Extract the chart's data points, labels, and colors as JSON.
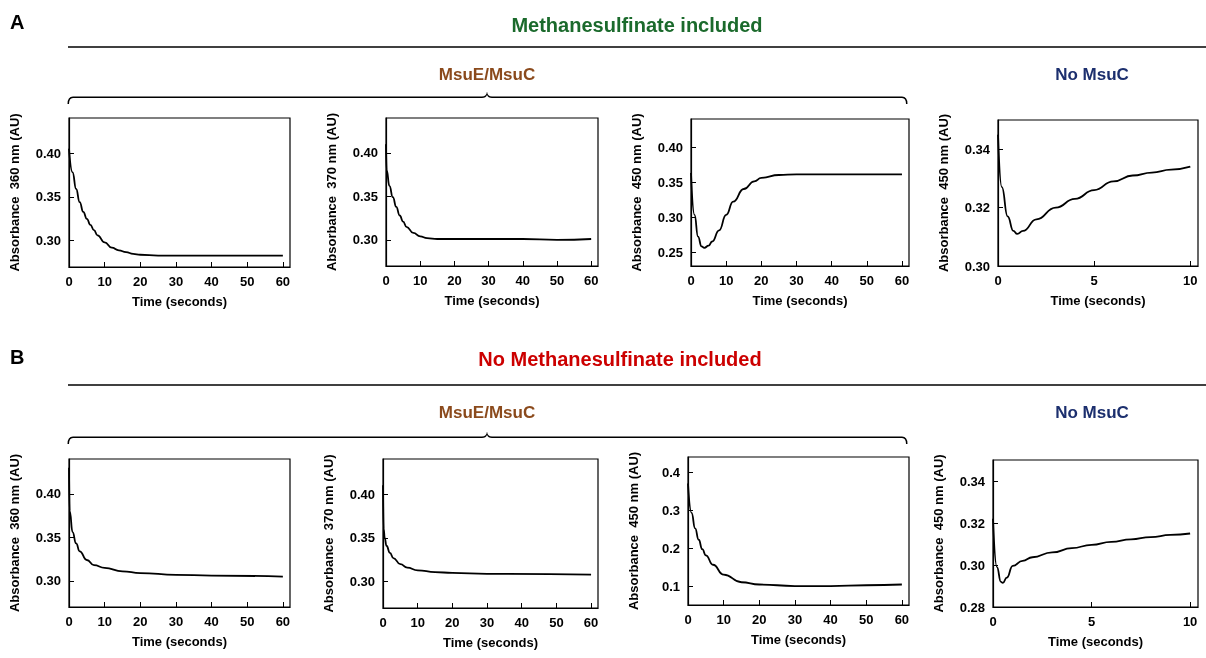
{
  "chart_data": [
    {
      "type": "line",
      "annotations": [
        "A",
        "Methanesulfinate included",
        "MsuE/MsuC"
      ],
      "xlabel": "Time (seconds)",
      "ylabel": "Absorbance  360 nm (AU)",
      "marker": "none",
      "line_style": "solid",
      "color": "#000000",
      "xlim": [
        0,
        62
      ],
      "xticks": [
        0,
        10,
        20,
        30,
        40,
        50,
        60
      ],
      "ylim": [
        0.27,
        0.44
      ],
      "yticks": [
        {
          "value": 0.3,
          "label": "0.30"
        },
        {
          "value": 0.35,
          "label": "0.35"
        },
        {
          "value": 0.4,
          "label": "0.40"
        }
      ],
      "x": [
        0,
        1,
        2,
        3,
        4,
        5,
        6,
        7,
        8,
        10,
        12,
        14,
        16,
        18,
        20,
        25,
        30,
        40,
        50,
        60
      ],
      "values": [
        0.405,
        0.378,
        0.359,
        0.344,
        0.333,
        0.325,
        0.318,
        0.312,
        0.306,
        0.298,
        0.292,
        0.289,
        0.287,
        0.285,
        0.284,
        0.283,
        0.283,
        0.283,
        0.283,
        0.283
      ]
    },
    {
      "type": "line",
      "xlabel": "Time (seconds)",
      "ylabel": "Absorbance  370 nm (AU)",
      "marker": "none",
      "line_style": "solid",
      "color": "#000000",
      "xlim": [
        0,
        62
      ],
      "xticks": [
        0,
        10,
        20,
        30,
        40,
        50,
        60
      ],
      "ylim": [
        0.27,
        0.44
      ],
      "yticks": [
        {
          "value": 0.3,
          "label": "0.30"
        },
        {
          "value": 0.35,
          "label": "0.35"
        },
        {
          "value": 0.4,
          "label": "0.40"
        }
      ],
      "x": [
        0,
        0.2,
        1,
        2,
        3,
        4,
        5,
        6,
        8,
        10,
        12,
        15,
        20,
        30,
        40,
        50,
        60
      ],
      "values": [
        0.41,
        0.38,
        0.362,
        0.349,
        0.338,
        0.328,
        0.321,
        0.315,
        0.308,
        0.304,
        0.302,
        0.301,
        0.301,
        0.301,
        0.301,
        0.3,
        0.301
      ]
    },
    {
      "type": "line",
      "xlabel": "Time (seconds)",
      "ylabel": "Absorbance  450 nm (AU)",
      "marker": "none",
      "line_style": "solid",
      "color": "#000000",
      "xlim": [
        0,
        62
      ],
      "xticks": [
        0,
        10,
        20,
        30,
        40,
        50,
        60
      ],
      "ylim": [
        0.23,
        0.44
      ],
      "yticks": [
        {
          "value": 0.25,
          "label": "0.25"
        },
        {
          "value": 0.3,
          "label": "0.30"
        },
        {
          "value": 0.35,
          "label": "0.35"
        },
        {
          "value": 0.4,
          "label": "0.40"
        }
      ],
      "x": [
        0,
        1,
        2,
        3,
        3.8,
        5,
        6,
        8,
        10,
        12,
        15,
        18,
        20,
        25,
        30,
        40,
        50,
        60
      ],
      "values": [
        0.363,
        0.303,
        0.272,
        0.258,
        0.256,
        0.259,
        0.265,
        0.281,
        0.303,
        0.322,
        0.34,
        0.351,
        0.356,
        0.36,
        0.361,
        0.361,
        0.361,
        0.361
      ]
    },
    {
      "type": "line",
      "annotations": [
        "No MsuC"
      ],
      "xlabel": "Time (seconds)",
      "ylabel": "Absorbance  450 nm (AU)",
      "marker": "none",
      "line_style": "solid",
      "color": "#000000",
      "xlim": [
        0,
        10.4
      ],
      "xticks": [
        0,
        5,
        10
      ],
      "ylim": [
        0.3,
        0.35
      ],
      "yticks": [
        {
          "value": 0.3,
          "label": "0.30"
        },
        {
          "value": 0.32,
          "label": "0.32"
        },
        {
          "value": 0.34,
          "label": "0.34"
        }
      ],
      "x": [
        0,
        0.2,
        0.5,
        0.8,
        1,
        1.3,
        2,
        3,
        4,
        5,
        6,
        7,
        8,
        9,
        10
      ],
      "values": [
        0.345,
        0.327,
        0.317,
        0.312,
        0.311,
        0.312,
        0.316,
        0.32,
        0.323,
        0.326,
        0.329,
        0.331,
        0.332,
        0.333,
        0.334
      ]
    },
    {
      "type": "line",
      "annotations": [
        "B",
        "No Methanesulfinate included",
        "MsuE/MsuC"
      ],
      "xlabel": "Time (seconds)",
      "ylabel": "Absorbance  360 nm (AU)",
      "marker": "none",
      "line_style": "solid",
      "color": "#000000",
      "xlim": [
        0,
        62
      ],
      "xticks": [
        0,
        10,
        20,
        30,
        40,
        50,
        60
      ],
      "ylim": [
        0.27,
        0.44
      ],
      "yticks": [
        {
          "value": 0.3,
          "label": "0.30"
        },
        {
          "value": 0.35,
          "label": "0.35"
        },
        {
          "value": 0.4,
          "label": "0.40"
        }
      ],
      "x": [
        0,
        0.2,
        1,
        2,
        3,
        5,
        7,
        10,
        15,
        20,
        30,
        40,
        60
      ],
      "values": [
        0.43,
        0.38,
        0.356,
        0.343,
        0.334,
        0.324,
        0.318,
        0.315,
        0.311,
        0.309,
        0.307,
        0.306,
        0.305
      ]
    },
    {
      "type": "line",
      "xlabel": "Time (seconds)",
      "ylabel": "Absorbance  370 nm (AU)",
      "marker": "none",
      "line_style": "solid",
      "color": "#000000",
      "xlim": [
        0,
        62
      ],
      "xticks": [
        0,
        10,
        20,
        30,
        40,
        50,
        60
      ],
      "ylim": [
        0.27,
        0.44
      ],
      "yticks": [
        {
          "value": 0.3,
          "label": "0.30"
        },
        {
          "value": 0.35,
          "label": "0.35"
        },
        {
          "value": 0.4,
          "label": "0.40"
        }
      ],
      "x": [
        0,
        0.2,
        0.5,
        1,
        2,
        3,
        5,
        7,
        10,
        15,
        20,
        30,
        60
      ],
      "values": [
        0.41,
        0.36,
        0.35,
        0.341,
        0.333,
        0.327,
        0.32,
        0.316,
        0.313,
        0.311,
        0.31,
        0.309,
        0.308
      ]
    },
    {
      "type": "line",
      "xlabel": "Time (seconds)",
      "ylabel": "Absorbance  450 nm (AU)",
      "marker": "none",
      "line_style": "solid",
      "color": "#000000",
      "xlim": [
        0,
        62
      ],
      "xticks": [
        0,
        10,
        20,
        30,
        40,
        50,
        60
      ],
      "ylim": [
        0.05,
        0.44
      ],
      "yticks": [
        0.1,
        0.2,
        0.3,
        0.4
      ],
      "x": [
        0,
        1,
        2,
        3,
        4,
        5,
        7,
        10,
        15,
        20,
        30,
        40,
        50,
        60
      ],
      "values": [
        0.37,
        0.293,
        0.252,
        0.222,
        0.197,
        0.181,
        0.156,
        0.13,
        0.11,
        0.104,
        0.1,
        0.1,
        0.102,
        0.104
      ]
    },
    {
      "type": "line",
      "annotations": [
        "No MsuC"
      ],
      "xlabel": "Time (seconds)",
      "ylabel": "Absorbance  450 nm (AU)",
      "marker": "none",
      "line_style": "solid",
      "color": "#000000",
      "xlim": [
        0,
        10.4
      ],
      "xticks": [
        0,
        5,
        10
      ],
      "ylim": [
        0.28,
        0.35
      ],
      "yticks": [
        {
          "value": 0.28,
          "label": "0.28"
        },
        {
          "value": 0.3,
          "label": "0.30"
        },
        {
          "value": 0.32,
          "label": "0.32"
        },
        {
          "value": 0.34,
          "label": "0.34"
        }
      ],
      "x": [
        0,
        0.2,
        0.4,
        0.5,
        0.7,
        1,
        1.5,
        2,
        3,
        4,
        5,
        6,
        7,
        8,
        9,
        10
      ],
      "values": [
        0.322,
        0.299,
        0.292,
        0.2915,
        0.294,
        0.2996,
        0.302,
        0.3037,
        0.306,
        0.308,
        0.3096,
        0.311,
        0.3122,
        0.3133,
        0.3143,
        0.315
      ]
    }
  ]
}
